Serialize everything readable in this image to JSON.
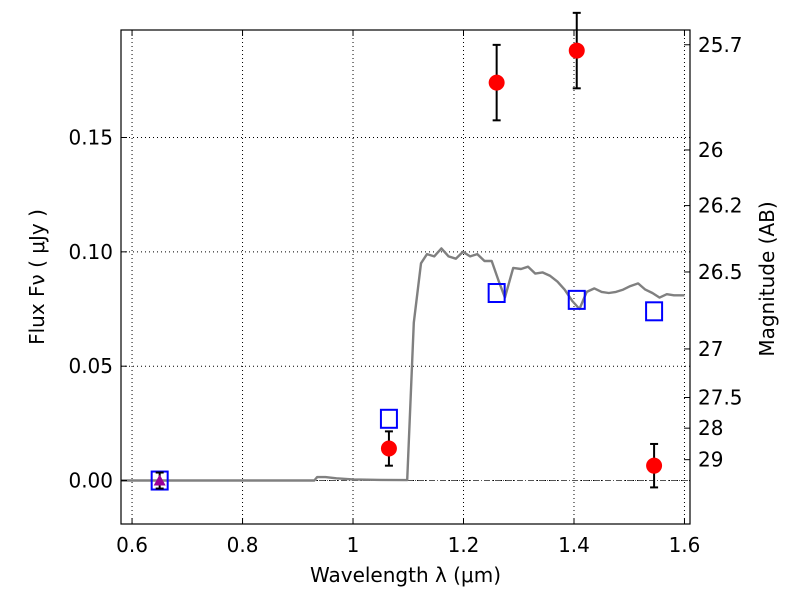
{
  "chart_data": {
    "type": "scatter",
    "xlabel": "Wavelength  λ (μm)",
    "ylabel": "Flux  Fν  ( μJy )",
    "y2label": "Magnitude (AB)",
    "xlim": [
      0.58,
      1.61
    ],
    "ylim": [
      -0.019,
      0.197
    ],
    "grid": true,
    "x_ticks": [
      {
        "value": 0.6,
        "label": "0.6"
      },
      {
        "value": 0.8,
        "label": "0.8"
      },
      {
        "value": 1.0,
        "label": "1"
      },
      {
        "value": 1.2,
        "label": "1.2"
      },
      {
        "value": 1.4,
        "label": "1.4"
      },
      {
        "value": 1.6,
        "label": "1.6"
      }
    ],
    "y_ticks": [
      {
        "value": 0.0,
        "label": "0.00"
      },
      {
        "value": 0.05,
        "label": "0.05"
      },
      {
        "value": 0.1,
        "label": "0.10"
      },
      {
        "value": 0.15,
        "label": "0.15"
      }
    ],
    "mag_ticks": [
      {
        "value": 25.7,
        "label": "25.7"
      },
      {
        "value": 26.0,
        "label": "26"
      },
      {
        "value": 26.2,
        "label": "26.2"
      },
      {
        "value": 26.5,
        "label": "26.5"
      },
      {
        "value": 27.0,
        "label": "27"
      },
      {
        "value": 27.5,
        "label": "27.5"
      },
      {
        "value": 28.0,
        "label": "28"
      },
      {
        "value": 29.0,
        "label": "29"
      }
    ],
    "series": [
      {
        "kind": "line",
        "color": "#808080",
        "points": [
          [
            0.58,
            0.0
          ],
          [
            0.93,
            0.0
          ],
          [
            0.935,
            0.0015
          ],
          [
            0.95,
            0.0015
          ],
          [
            0.97,
            0.001
          ],
          [
            1.0,
            0.0005
          ],
          [
            1.05,
            0.0003
          ],
          [
            1.098,
            0.0002
          ],
          [
            1.11,
            0.069
          ],
          [
            1.123,
            0.095
          ],
          [
            1.134,
            0.099
          ],
          [
            1.147,
            0.098
          ],
          [
            1.16,
            0.1015
          ],
          [
            1.173,
            0.098
          ],
          [
            1.186,
            0.097
          ],
          [
            1.199,
            0.1
          ],
          [
            1.212,
            0.098
          ],
          [
            1.225,
            0.099
          ],
          [
            1.238,
            0.096
          ],
          [
            1.251,
            0.096
          ],
          [
            1.264,
            0.087
          ],
          [
            1.275,
            0.08
          ],
          [
            1.29,
            0.093
          ],
          [
            1.304,
            0.0925
          ],
          [
            1.317,
            0.0935
          ],
          [
            1.33,
            0.0905
          ],
          [
            1.343,
            0.091
          ],
          [
            1.357,
            0.0895
          ],
          [
            1.37,
            0.087
          ],
          [
            1.383,
            0.0835
          ],
          [
            1.397,
            0.0785
          ],
          [
            1.41,
            0.075
          ],
          [
            1.423,
            0.0825
          ],
          [
            1.437,
            0.084
          ],
          [
            1.45,
            0.0825
          ],
          [
            1.463,
            0.082
          ],
          [
            1.476,
            0.0825
          ],
          [
            1.489,
            0.0835
          ],
          [
            1.502,
            0.085
          ],
          [
            1.516,
            0.0862
          ],
          [
            1.529,
            0.0835
          ],
          [
            1.542,
            0.082
          ],
          [
            1.555,
            0.08
          ],
          [
            1.568,
            0.0815
          ],
          [
            1.581,
            0.081
          ],
          [
            1.6,
            0.081
          ]
        ]
      },
      {
        "kind": "squares",
        "color": "#0000ff",
        "points": [
          [
            0.65,
            0.0
          ],
          [
            1.065,
            0.027
          ],
          [
            1.26,
            0.082
          ],
          [
            1.405,
            0.079
          ],
          [
            1.545,
            0.074
          ]
        ]
      },
      {
        "kind": "dots",
        "color": "#ff0000",
        "points": [
          [
            1.065,
            0.014
          ],
          [
            1.26,
            0.174
          ],
          [
            1.405,
            0.188
          ],
          [
            1.545,
            0.0065
          ]
        ],
        "errors": [
          0.0075,
          0.0165,
          0.0165,
          0.0095
        ]
      },
      {
        "kind": "triangle",
        "color": "#990099",
        "points": [
          [
            0.65,
            0.0
          ]
        ],
        "errors": [
          0.0035
        ]
      }
    ]
  }
}
